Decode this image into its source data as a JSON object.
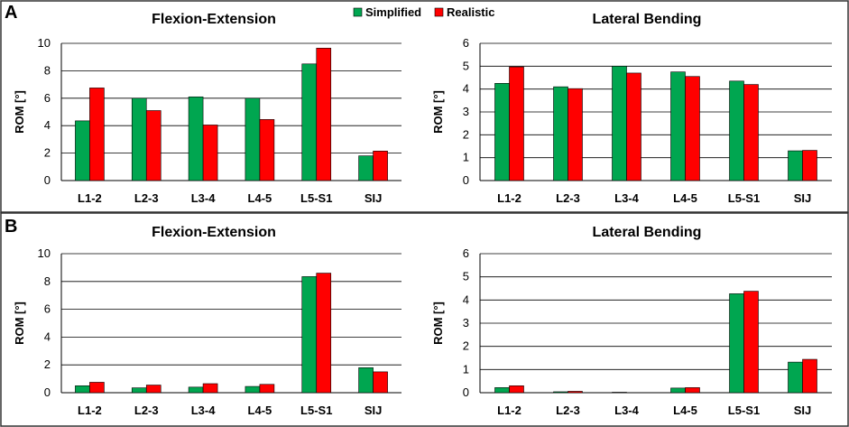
{
  "panel_labels": [
    "A",
    "B"
  ],
  "legend": [
    {
      "name": "Simplified",
      "color": "#00a650"
    },
    {
      "name": "Realistic",
      "color": "#ff0000"
    }
  ],
  "chart_data": [
    {
      "type": "bar",
      "panel": "A",
      "title": "Flexion-Extension",
      "categories": [
        "L1-2",
        "L2-3",
        "L3-4",
        "L4-5",
        "L5-S1",
        "SIJ"
      ],
      "ylabel": "ROM [°]",
      "ylim": [
        0,
        10
      ],
      "yticks": [
        0,
        2,
        4,
        6,
        8,
        10
      ],
      "grid": true,
      "series": [
        {
          "name": "Simplified",
          "values": [
            4.35,
            6.0,
            6.1,
            6.0,
            8.5,
            1.8
          ]
        },
        {
          "name": "Realistic",
          "values": [
            6.75,
            5.1,
            4.05,
            4.45,
            9.65,
            2.15
          ]
        }
      ]
    },
    {
      "type": "bar",
      "panel": "A",
      "title": "Lateral Bending",
      "categories": [
        "L1-2",
        "L2-3",
        "L3-4",
        "L4-5",
        "L5-S1",
        "SIJ"
      ],
      "ylabel": "ROM [°]",
      "ylim": [
        0,
        6
      ],
      "yticks": [
        0,
        1,
        2,
        3,
        4,
        5,
        6
      ],
      "grid": true,
      "series": [
        {
          "name": "Simplified",
          "values": [
            4.25,
            4.1,
            5.0,
            4.75,
            4.35,
            1.3
          ]
        },
        {
          "name": "Realistic",
          "values": [
            4.97,
            4.02,
            4.7,
            4.55,
            4.2,
            1.32
          ]
        }
      ]
    },
    {
      "type": "bar",
      "panel": "B",
      "title": "Flexion-Extension",
      "categories": [
        "L1-2",
        "L2-3",
        "L3-4",
        "L4-5",
        "L5-S1",
        "SIJ"
      ],
      "ylabel": "ROM [°]",
      "ylim": [
        0,
        10
      ],
      "yticks": [
        0,
        2,
        4,
        6,
        8,
        10
      ],
      "grid": true,
      "series": [
        {
          "name": "Simplified",
          "values": [
            0.5,
            0.35,
            0.4,
            0.45,
            8.35,
            1.8
          ]
        },
        {
          "name": "Realistic",
          "values": [
            0.75,
            0.55,
            0.65,
            0.6,
            8.6,
            1.5
          ]
        }
      ]
    },
    {
      "type": "bar",
      "panel": "B",
      "title": "Lateral Bending",
      "categories": [
        "L1-2",
        "L2-3",
        "L3-4",
        "L4-5",
        "L5-S1",
        "SIJ"
      ],
      "ylabel": "ROM [°]",
      "ylim": [
        0,
        6
      ],
      "yticks": [
        0,
        1,
        2,
        3,
        4,
        5,
        6
      ],
      "grid": true,
      "series": [
        {
          "name": "Simplified",
          "values": [
            0.22,
            0.04,
            0.02,
            0.2,
            4.27,
            1.32
          ]
        },
        {
          "name": "Realistic",
          "values": [
            0.3,
            0.06,
            0.0,
            0.22,
            4.38,
            1.44
          ]
        }
      ]
    }
  ]
}
